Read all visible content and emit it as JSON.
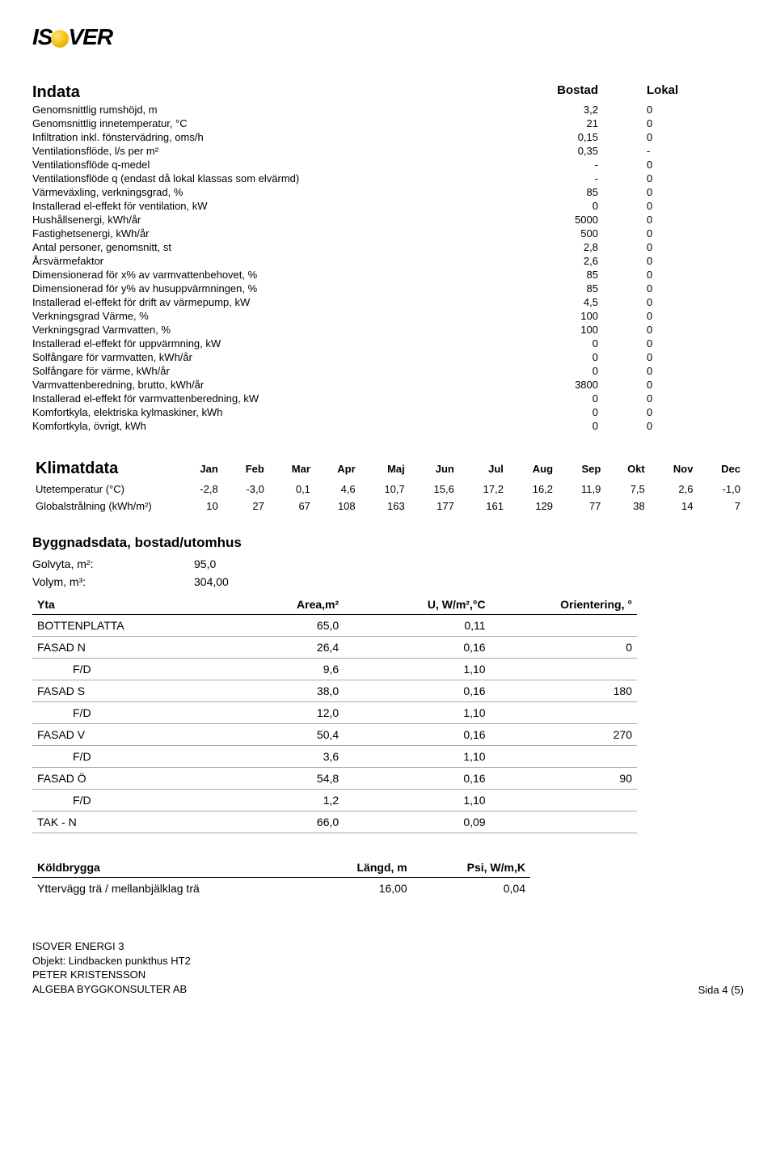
{
  "logo": {
    "part1": "IS",
    "part2": "VER"
  },
  "indata": {
    "title": "Indata",
    "col1": "Bostad",
    "col2": "Lokal",
    "rows": [
      {
        "label": "Genomsnittlig rumshöjd, m",
        "v1": "3,2",
        "v2": "0"
      },
      {
        "label": "Genomsnittlig innetemperatur, °C",
        "v1": "21",
        "v2": "0"
      },
      {
        "label": "Infiltration inkl. fönstervädring, oms/h",
        "v1": "0,15",
        "v2": "0"
      },
      {
        "label": "Ventilationsflöde, l/s per m²",
        "v1": "0,35",
        "v2": "-"
      },
      {
        "label": "Ventilationsflöde q-medel",
        "v1": "-",
        "v2": "0"
      },
      {
        "label": "Ventilationsflöde q (endast då lokal klassas som elvärmd)",
        "v1": "-",
        "v2": "0"
      },
      {
        "label": "Värmeväxling, verkningsgrad, %",
        "v1": "85",
        "v2": "0"
      },
      {
        "label": "Installerad el-effekt för ventilation, kW",
        "v1": "0",
        "v2": "0"
      },
      {
        "label": "Hushållsenergi, kWh/år",
        "v1": "5000",
        "v2": "0"
      },
      {
        "label": "Fastighetsenergi, kWh/år",
        "v1": "500",
        "v2": "0"
      },
      {
        "label": "Antal personer, genomsnitt, st",
        "v1": "2,8",
        "v2": "0"
      },
      {
        "label": "Årsvärmefaktor",
        "v1": "2,6",
        "v2": "0"
      },
      {
        "label": "Dimensionerad för x% av varmvattenbehovet, %",
        "v1": "85",
        "v2": "0"
      },
      {
        "label": "Dimensionerad för y% av husuppvärmningen, %",
        "v1": "85",
        "v2": "0"
      },
      {
        "label": "Installerad el-effekt för drift av värmepump, kW",
        "v1": "4,5",
        "v2": "0"
      },
      {
        "label": "Verkningsgrad Värme, %",
        "v1": "100",
        "v2": "0"
      },
      {
        "label": "Verkningsgrad Varmvatten, %",
        "v1": "100",
        "v2": "0"
      },
      {
        "label": "Installerad el-effekt för uppvärmning, kW",
        "v1": "0",
        "v2": "0"
      },
      {
        "label": "Solfångare för varmvatten, kWh/år",
        "v1": "0",
        "v2": "0"
      },
      {
        "label": "Solfångare för värme, kWh/år",
        "v1": "0",
        "v2": "0"
      },
      {
        "label": "Varmvattenberedning, brutto, kWh/år",
        "v1": "3800",
        "v2": "0"
      },
      {
        "label": "Installerad el-effekt för varmvattenberedning, kW",
        "v1": "0",
        "v2": "0"
      },
      {
        "label": "Komfortkyla, elektriska kylmaskiner, kWh",
        "v1": "0",
        "v2": "0"
      },
      {
        "label": "Komfortkyla, övrigt, kWh",
        "v1": "0",
        "v2": "0"
      }
    ]
  },
  "klimat": {
    "title": "Klimatdata",
    "months": [
      "Jan",
      "Feb",
      "Mar",
      "Apr",
      "Maj",
      "Jun",
      "Jul",
      "Aug",
      "Sep",
      "Okt",
      "Nov",
      "Dec"
    ],
    "rows": [
      {
        "label": "Utetemperatur (°C)",
        "vals": [
          "-2,8",
          "-3,0",
          "0,1",
          "4,6",
          "10,7",
          "15,6",
          "17,2",
          "16,2",
          "11,9",
          "7,5",
          "2,6",
          "-1,0"
        ]
      },
      {
        "label": "Globalstrålning (kWh/m²)",
        "vals": [
          "10",
          "27",
          "67",
          "108",
          "163",
          "177",
          "161",
          "129",
          "77",
          "38",
          "14",
          "7"
        ]
      }
    ]
  },
  "bygg": {
    "title": "Byggnadsdata, bostad/utomhus",
    "golvyta_label": "Golvyta, m²:",
    "golvyta_val": "95,0",
    "volym_label": "Volym, m³:",
    "volym_val": "304,00",
    "yta": {
      "headers": [
        "Yta",
        "Area,m²",
        "U, W/m²,°C",
        "Orientering, °"
      ],
      "rows": [
        {
          "name": "BOTTENPLATTA",
          "area": "65,0",
          "u": "0,11",
          "orient": "",
          "indent": false
        },
        {
          "name": "FASAD N",
          "area": "26,4",
          "u": "0,16",
          "orient": "0",
          "indent": false
        },
        {
          "name": "F/D",
          "area": "9,6",
          "u": "1,10",
          "orient": "",
          "indent": true
        },
        {
          "name": "FASAD S",
          "area": "38,0",
          "u": "0,16",
          "orient": "180",
          "indent": false
        },
        {
          "name": "F/D",
          "area": "12,0",
          "u": "1,10",
          "orient": "",
          "indent": true
        },
        {
          "name": "FASAD V",
          "area": "50,4",
          "u": "0,16",
          "orient": "270",
          "indent": false
        },
        {
          "name": "F/D",
          "area": "3,6",
          "u": "1,10",
          "orient": "",
          "indent": true
        },
        {
          "name": "FASAD Ö",
          "area": "54,8",
          "u": "0,16",
          "orient": "90",
          "indent": false
        },
        {
          "name": "F/D",
          "area": "1,2",
          "u": "1,10",
          "orient": "",
          "indent": true
        },
        {
          "name": "TAK - N",
          "area": "66,0",
          "u": "0,09",
          "orient": "",
          "indent": false
        }
      ]
    },
    "kold": {
      "headers": [
        "Köldbrygga",
        "Längd, m",
        "Psi, W/m,K"
      ],
      "rows": [
        {
          "name": "Yttervägg trä / mellanbjälklag trä",
          "len": "16,00",
          "psi": "0,04"
        }
      ]
    }
  },
  "footer": {
    "l1": "ISOVER ENERGI 3",
    "l2": "Objekt: Lindbacken punkthus HT2",
    "l3": "PETER KRISTENSSON",
    "l4": "ALGEBA BYGGKONSULTER AB",
    "page": "Sida 4 (5)"
  }
}
